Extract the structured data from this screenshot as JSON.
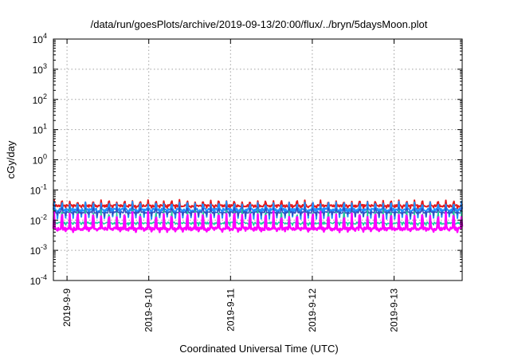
{
  "chart_data": {
    "type": "line",
    "title": "/data/run/goesPlots/archive/2019-09-13/20:00/flux/../bryn/5daysMoon.plot",
    "xlabel": "Coordinated Universal Time (UTC)",
    "ylabel": "cGy/day",
    "yscale": "log",
    "ylim": [
      0.0001,
      10000
    ],
    "xlim": [
      "2019-09-08T20:00",
      "2019-09-13T20:00"
    ],
    "grid": true,
    "x_ticks": [
      {
        "label": "2019-9-9",
        "value": "2019-09-09T00:00"
      },
      {
        "label": "2019-9-10",
        "value": "2019-09-10T00:00"
      },
      {
        "label": "2019-9-11",
        "value": "2019-09-11T00:00"
      },
      {
        "label": "2019-9-12",
        "value": "2019-09-12T00:00"
      },
      {
        "label": "2019-9-13",
        "value": "2019-09-13T00:00"
      }
    ],
    "y_ticks": [
      {
        "base": "10",
        "exp": "-4",
        "value": 0.0001
      },
      {
        "base": "10",
        "exp": "-3",
        "value": 0.001
      },
      {
        "base": "10",
        "exp": "-2",
        "value": 0.01
      },
      {
        "base": "10",
        "exp": "-1",
        "value": 0.1
      },
      {
        "base": "10",
        "exp": "0",
        "value": 1
      },
      {
        "base": "10",
        "exp": "1",
        "value": 10
      },
      {
        "base": "10",
        "exp": "2",
        "value": 100
      },
      {
        "base": "10",
        "exp": "3",
        "value": 1000
      },
      {
        "base": "10",
        "exp": "4",
        "value": 10000
      }
    ],
    "series": [
      {
        "color": "#e41a1c",
        "baseline": 0.03,
        "peak_factor": 1.5,
        "dip_factor": 0.9,
        "noise": 0.08,
        "stroke": 2
      },
      {
        "color": "#1e90ff",
        "baseline": 0.022,
        "peak_factor": 1.8,
        "dip_factor": 0.55,
        "noise": 0.12,
        "stroke": 2
      },
      {
        "color": "#3050c0",
        "baseline": 0.018,
        "peak_factor": 1.5,
        "dip_factor": 0.8,
        "noise": 0.06,
        "stroke": 1.5
      },
      {
        "color": "#20c8a0",
        "baseline": 0.008,
        "peak_factor": 2.6,
        "dip_factor": 0.9,
        "noise": 0.08,
        "stroke": 1.5
      },
      {
        "color": "#ff00ff",
        "baseline": 0.0052,
        "peak_factor": 3.3,
        "dip_factor": 0.85,
        "noise": 0.1,
        "stroke": 2.5
      }
    ],
    "samples": 600,
    "burst_period_hours": 2.3
  }
}
